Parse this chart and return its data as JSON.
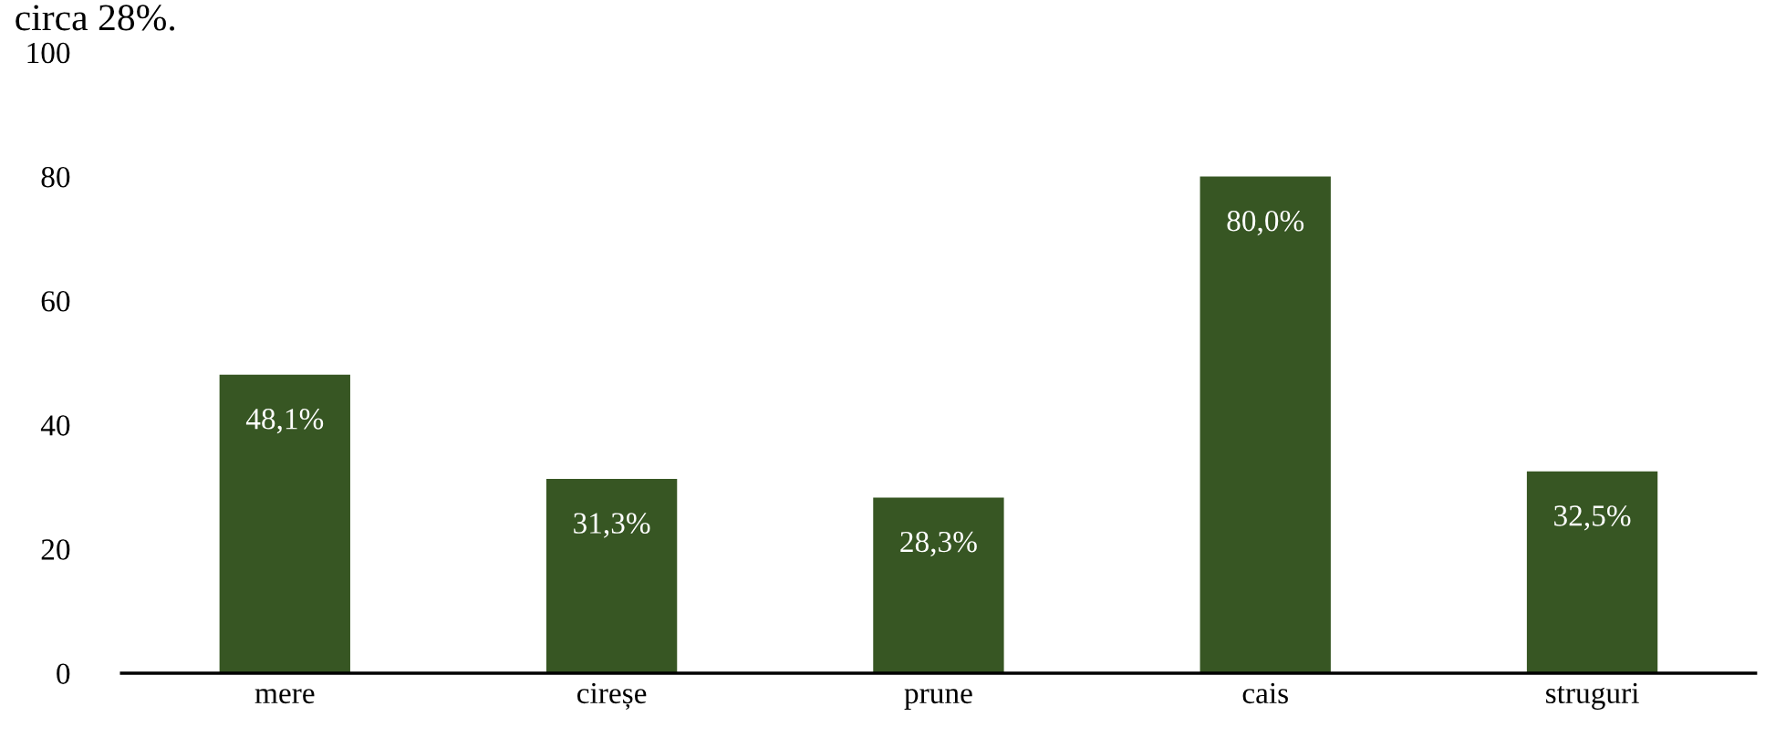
{
  "chart_data": {
    "type": "bar",
    "annotations": [
      "circa 28%."
    ],
    "categories": [
      "mere",
      "cireșe",
      "prune",
      "cais",
      "struguri"
    ],
    "values": [
      48.1,
      31.3,
      28.3,
      80.0,
      32.5
    ],
    "value_labels": [
      "48,1%",
      "31,3%",
      "28,3%",
      "80,0%",
      "32,5%"
    ],
    "color": "#375623",
    "ylim": [
      0,
      100
    ],
    "yticks": [
      0,
      20,
      40,
      60,
      80,
      100
    ],
    "grid": false,
    "legend": false
  }
}
